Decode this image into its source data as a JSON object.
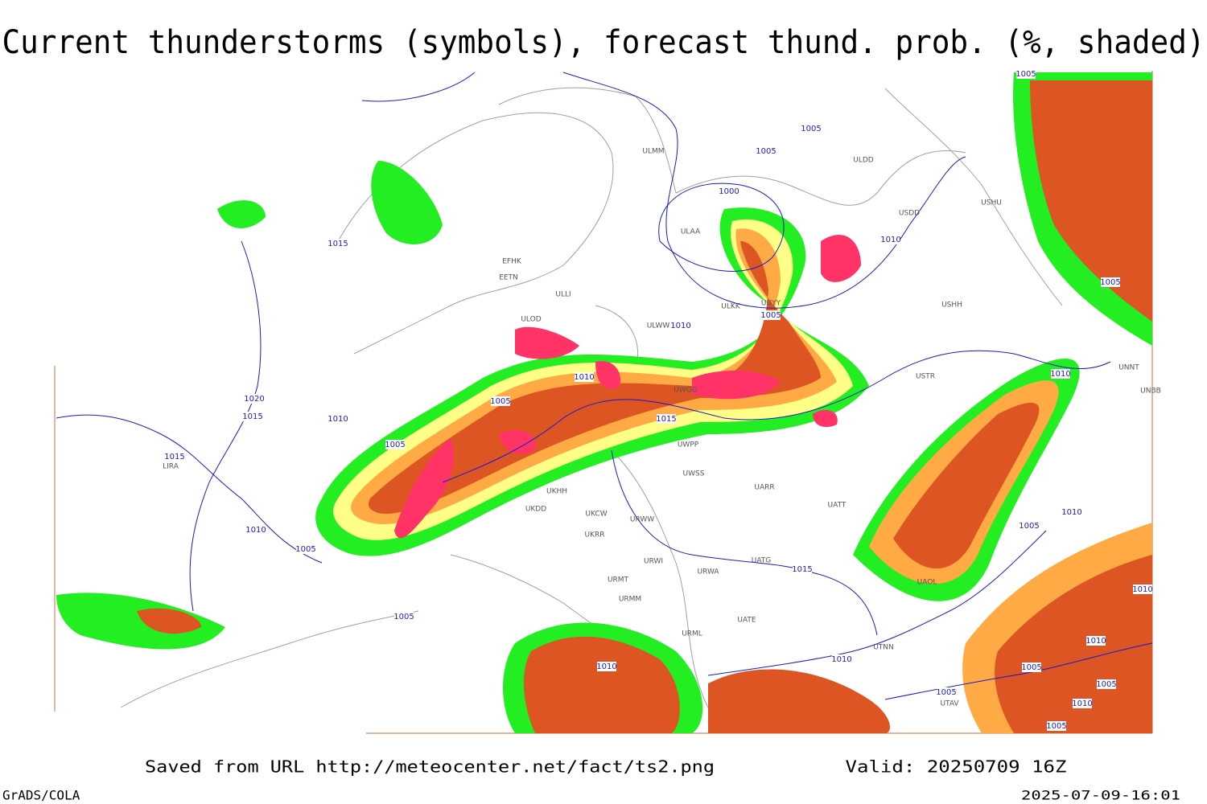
{
  "header": {
    "title": "Current thunderstorms (symbols), forecast thund. prob. (%, shaded)"
  },
  "map": {
    "isobar_labels": [
      "1005",
      "1005",
      "1005",
      "1000",
      "1015",
      "1010",
      "1005",
      "1005",
      "1010",
      "1010",
      "1005",
      "1020",
      "1015",
      "1010",
      "1005",
      "1015",
      "1010",
      "1015",
      "1010",
      "1005",
      "1010",
      "1005",
      "1015",
      "1005",
      "1010",
      "1010",
      "1010",
      "1010",
      "1005",
      "1005",
      "1005",
      "1010",
      "1005"
    ],
    "station_labels": [
      "ULMM",
      "ULDD",
      "USDD",
      "USHU",
      "ULAA",
      "EFHK",
      "EETN",
      "ULLI",
      "ULOD",
      "ULKK",
      "UUYY",
      "USHH",
      "ULWW",
      "USTR",
      "UNNT",
      "UNBB",
      "UWGG",
      "UWPP",
      "UWSS",
      "UARR",
      "UATT",
      "UKHH",
      "UKDD",
      "UKCW",
      "UKRR",
      "URWI",
      "URWA",
      "UATG",
      "URMT",
      "URMM",
      "URWW",
      "URML",
      "UATE",
      "UAOL",
      "UTNN",
      "UTAV",
      "LIRA"
    ]
  },
  "footer": {
    "source": "Saved from URL http://meteocenter.net/fact/ts2.png",
    "valid": "Valid: 20250709 16Z",
    "software": "GrADS/COLA",
    "timestamp": "2025-07-09-16:01"
  }
}
